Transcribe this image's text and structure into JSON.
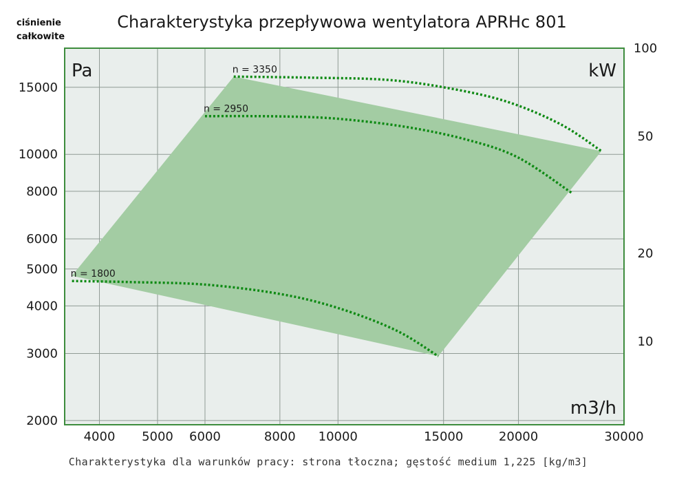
{
  "chart_data": {
    "type": "line",
    "title": "Charakterystyka przepływowa wentylatora APRHc 801",
    "ylabel": [
      "ciśnienie",
      "całkowite"
    ],
    "y_unit": "Pa",
    "y2_unit": "kW",
    "x_unit": "m3/h",
    "x_scale": "log",
    "y_scale": "log",
    "xlim": [
      3500,
      30000
    ],
    "ylim": [
      1950,
      19000
    ],
    "y2lim": [
      5.2,
      100
    ],
    "x_ticks": [
      4000,
      5000,
      6000,
      8000,
      10000,
      15000,
      20000,
      30000
    ],
    "x_tick_labels": [
      "4000",
      "5000",
      "6000",
      "8000",
      "10000",
      "15000",
      "20000",
      "30000"
    ],
    "y_ticks": [
      2000,
      3000,
      4000,
      5000,
      6000,
      8000,
      10000,
      15000
    ],
    "y_tick_labels": [
      "2000",
      "3000",
      "4000",
      "5000",
      "6000",
      "8000",
      "10000",
      "15000"
    ],
    "y2_ticks": [
      10,
      20,
      50,
      100
    ],
    "y2_tick_labels": [
      "10",
      "20",
      "50",
      "100"
    ],
    "grid": true,
    "operating_region": [
      [
        3600,
        4800
      ],
      [
        6700,
        16000
      ],
      [
        27500,
        10200
      ],
      [
        14700,
        2950
      ]
    ],
    "series": [
      {
        "name": "n = 1800",
        "x": [
          3600,
          4500,
          6000,
          8000,
          10000,
          12500,
          14700
        ],
        "y": [
          4650,
          4620,
          4550,
          4300,
          3950,
          3450,
          2950
        ]
      },
      {
        "name": "n = 2950",
        "x": [
          6000,
          8000,
          10000,
          13000,
          16500,
          20000,
          24600
        ],
        "y": [
          12600,
          12580,
          12400,
          11800,
          10900,
          9800,
          7900
        ]
      },
      {
        "name": "n = 3350",
        "x": [
          6700,
          9000,
          12000,
          15000,
          19000,
          23500,
          27500
        ],
        "y": [
          16000,
          15900,
          15700,
          15000,
          13800,
          12000,
          10200
        ]
      }
    ],
    "footnote": "Charakterystyka dla warunków pracy: strona tłoczna; gęstość medium 1,225 [kg/m3]",
    "colors": {
      "region_fill": "#a3cca3",
      "curve": "#0f8a14",
      "plot_bg": "#e9eeec",
      "frame": "#3c8c3c",
      "grid": "#8f9a94"
    }
  }
}
